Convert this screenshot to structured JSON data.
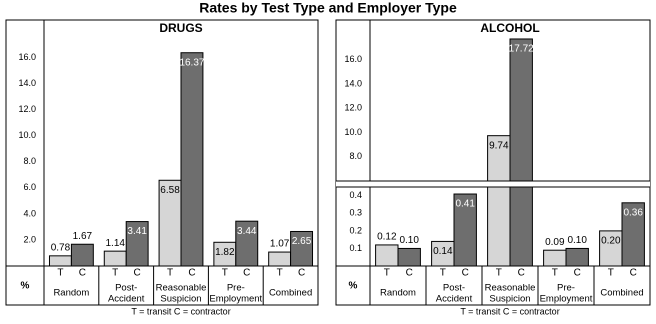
{
  "title": "Rates by Test Type and Employer Type",
  "chart_data": [
    {
      "type": "bar",
      "title": "DRUGS",
      "y_label": "%",
      "footnote": "T = transit   C = contractor",
      "categories": [
        [
          "Random"
        ],
        [
          "Post-",
          "Accident"
        ],
        [
          "Reasonable",
          "Suspicion"
        ],
        [
          "Pre-",
          "Employment"
        ],
        [
          "Combined"
        ]
      ],
      "series": [
        {
          "name": "T",
          "color": "#d6d6d6",
          "values": [
            0.78,
            1.14,
            6.58,
            1.82,
            1.07
          ]
        },
        {
          "name": "C",
          "color": "#6e6e6e",
          "values": [
            1.67,
            3.41,
            16.37,
            3.44,
            2.65
          ]
        }
      ],
      "ylim": [
        0,
        17.5
      ],
      "yticks": [
        {
          "value": 2,
          "label": "2.0"
        },
        {
          "value": 4,
          "label": "4.0"
        },
        {
          "value": 6,
          "label": "6.0"
        },
        {
          "value": 8,
          "label": "8.0"
        },
        {
          "value": 10,
          "label": "10.0"
        },
        {
          "value": 12,
          "label": "12.0"
        },
        {
          "value": 14,
          "label": "14.0"
        },
        {
          "value": 16,
          "label": "16.0"
        }
      ]
    },
    {
      "type": "bar",
      "title": "ALCOHOL",
      "y_label": "%",
      "footnote": "T = transit   C = contractor",
      "categories": [
        [
          "Random"
        ],
        [
          "Post-",
          "Accident"
        ],
        [
          "Reasonable",
          "Suspicion"
        ],
        [
          "Pre-",
          "Employment"
        ],
        [
          "Combined"
        ]
      ],
      "series": [
        {
          "name": "T",
          "color": "#d6d6d6",
          "values": [
            0.12,
            0.14,
            9.74,
            0.09,
            0.2
          ],
          "value_labels": [
            "0.12",
            "0.14",
            "9.74",
            "0.09",
            "0.20"
          ]
        },
        {
          "name": "C",
          "color": "#6e6e6e",
          "values": [
            0.1,
            0.41,
            17.72,
            0.1,
            0.36
          ],
          "value_labels": [
            "0.10",
            "0.41",
            "17.72",
            "0.10",
            "0.36"
          ]
        }
      ],
      "ylim": [
        0,
        0.45
      ],
      "yticks": [
        0.1,
        0.2,
        0.3,
        0.4
      ],
      "y_break": {
        "ylim": [
          6,
          17.8
        ],
        "yticks": [
          {
            "value": 8,
            "label": "8.0"
          },
          {
            "value": 10,
            "label": "10.0"
          },
          {
            "value": 12,
            "label": "12.0"
          },
          {
            "value": 14,
            "label": "14.0"
          },
          {
            "value": 16,
            "label": "16.0"
          }
        ]
      }
    }
  ]
}
